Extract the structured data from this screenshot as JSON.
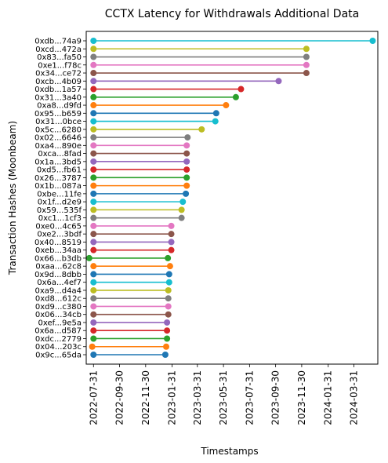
{
  "chart_data": {
    "type": "line",
    "title": "CCTX Latency for Withdrawals Additional Data",
    "xlabel": "Timestamps",
    "ylabel": "Transaction Hashes (Moonbeam)",
    "x_tick_labels": [
      "2022-07-31",
      "2022-09-30",
      "2022-11-30",
      "2023-01-31",
      "2023-03-31",
      "2023-05-31",
      "2023-07-31",
      "2023-09-30",
      "2023-11-30",
      "2024-01-31",
      "2024-03-31"
    ],
    "xlim": [
      "2022-07-14",
      "2024-05-26"
    ],
    "grid": false,
    "series": [
      {
        "label": "0x9c...65da",
        "color": "#1f77b4",
        "start": "2022-07-31",
        "end": "2023-01-15"
      },
      {
        "label": "0x04...203c",
        "color": "#ff7f0e",
        "start": "2022-07-28",
        "end": "2023-01-17"
      },
      {
        "label": "0xdc...2779",
        "color": "#2ca02c",
        "start": "2022-07-31",
        "end": "2023-01-19"
      },
      {
        "label": "0x6a...d587",
        "color": "#d62728",
        "start": "2022-07-31",
        "end": "2023-01-19"
      },
      {
        "label": "0xef...9e5a",
        "color": "#9467bd",
        "start": "2022-07-31",
        "end": "2023-01-19"
      },
      {
        "label": "0x06...34cb",
        "color": "#8c564b",
        "start": "2022-07-31",
        "end": "2023-01-22"
      },
      {
        "label": "0xd9...c380",
        "color": "#e377c2",
        "start": "2022-07-31",
        "end": "2023-01-22"
      },
      {
        "label": "0xd8...612c",
        "color": "#7f7f7f",
        "start": "2022-07-31",
        "end": "2023-01-22"
      },
      {
        "label": "0xa9...d4a4",
        "color": "#bcbd22",
        "start": "2022-07-31",
        "end": "2023-01-22"
      },
      {
        "label": "0x6a...4ef7",
        "color": "#17becf",
        "start": "2022-07-31",
        "end": "2023-01-24"
      },
      {
        "label": "0x9d...8dbb",
        "color": "#1f77b4",
        "start": "2022-07-31",
        "end": "2023-01-24"
      },
      {
        "label": "0xaa...62c8",
        "color": "#ff7f0e",
        "start": "2022-07-31",
        "end": "2023-01-26"
      },
      {
        "label": "0x66...b3db",
        "color": "#2ca02c",
        "start": "2022-07-21",
        "end": "2023-01-21"
      },
      {
        "label": "0xeb...34aa",
        "color": "#d62728",
        "start": "2022-07-31",
        "end": "2023-01-29"
      },
      {
        "label": "0x40...8519",
        "color": "#9467bd",
        "start": "2022-07-31",
        "end": "2023-01-29"
      },
      {
        "label": "0xe2...3bdf",
        "color": "#8c564b",
        "start": "2022-07-31",
        "end": "2023-01-29"
      },
      {
        "label": "0xe0...4c65",
        "color": "#e377c2",
        "start": "2022-07-31",
        "end": "2023-01-29"
      },
      {
        "label": "0xc1...1cf3",
        "color": "#7f7f7f",
        "start": "2022-07-31",
        "end": "2023-02-22"
      },
      {
        "label": "0x59...535f",
        "color": "#bcbd22",
        "start": "2022-07-31",
        "end": "2023-02-22"
      },
      {
        "label": "0x1f...d2e9",
        "color": "#17becf",
        "start": "2022-07-31",
        "end": "2023-02-25"
      },
      {
        "label": "0xbe...11fe",
        "color": "#1f77b4",
        "start": "2022-07-31",
        "end": "2023-03-04"
      },
      {
        "label": "0x1b...087a",
        "color": "#ff7f0e",
        "start": "2022-07-31",
        "end": "2023-03-06"
      },
      {
        "label": "0x26...3787",
        "color": "#2ca02c",
        "start": "2022-07-31",
        "end": "2023-03-06"
      },
      {
        "label": "0xd5...fb61",
        "color": "#d62728",
        "start": "2022-07-31",
        "end": "2023-03-06"
      },
      {
        "label": "0x1a...3bd5",
        "color": "#9467bd",
        "start": "2022-07-31",
        "end": "2023-03-06"
      },
      {
        "label": "0xca...8fad",
        "color": "#8c564b",
        "start": "2022-07-31",
        "end": "2023-03-06"
      },
      {
        "label": "0xa4...890e",
        "color": "#e377c2",
        "start": "2022-07-31",
        "end": "2023-03-06"
      },
      {
        "label": "0x02...6646",
        "color": "#7f7f7f",
        "start": "2022-07-31",
        "end": "2023-03-08"
      },
      {
        "label": "0x5c...6280",
        "color": "#bcbd22",
        "start": "2022-07-31",
        "end": "2023-04-10"
      },
      {
        "label": "0x31...0bce",
        "color": "#17becf",
        "start": "2022-07-31",
        "end": "2023-05-12"
      },
      {
        "label": "0x95...b659",
        "color": "#1f77b4",
        "start": "2022-07-31",
        "end": "2023-05-14"
      },
      {
        "label": "0xa8...d9fd",
        "color": "#ff7f0e",
        "start": "2022-07-31",
        "end": "2023-06-06"
      },
      {
        "label": "0x31...3a40",
        "color": "#2ca02c",
        "start": "2022-07-31",
        "end": "2023-06-29"
      },
      {
        "label": "0xdb...1a57",
        "color": "#d62728",
        "start": "2022-07-31",
        "end": "2023-07-11"
      },
      {
        "label": "0xcb...4b09",
        "color": "#9467bd",
        "start": "2022-07-31",
        "end": "2023-10-07"
      },
      {
        "label": "0x34...ce72",
        "color": "#8c564b",
        "start": "2022-07-31",
        "end": "2023-12-11"
      },
      {
        "label": "0xe1...f78c",
        "color": "#e377c2",
        "start": "2022-07-31",
        "end": "2023-12-11"
      },
      {
        "label": "0x83...fa50",
        "color": "#7f7f7f",
        "start": "2022-07-31",
        "end": "2023-12-11"
      },
      {
        "label": "0xcd...472a",
        "color": "#bcbd22",
        "start": "2022-07-31",
        "end": "2023-12-11"
      },
      {
        "label": "0xdb...74a9",
        "color": "#17becf",
        "start": "2022-07-31",
        "end": "2024-05-14"
      }
    ]
  }
}
